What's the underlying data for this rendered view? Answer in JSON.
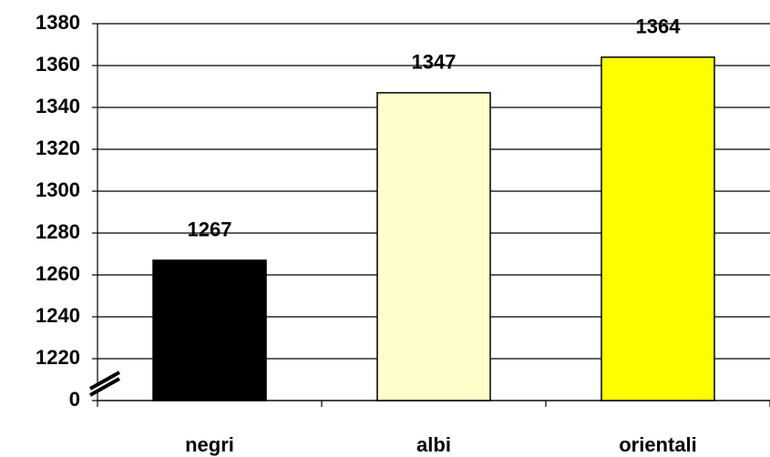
{
  "chart_data": {
    "type": "bar",
    "categories": [
      "negri",
      "albi",
      "orientali"
    ],
    "values": [
      1267,
      1347,
      1364
    ],
    "colors": [
      "#000000",
      "#ffffcc",
      "#ffff00"
    ],
    "ylim": [
      0,
      1380
    ],
    "yticks": [
      0,
      1220,
      1240,
      1260,
      1280,
      1300,
      1320,
      1340,
      1360,
      1380
    ],
    "axis_break": true,
    "grid": true
  }
}
